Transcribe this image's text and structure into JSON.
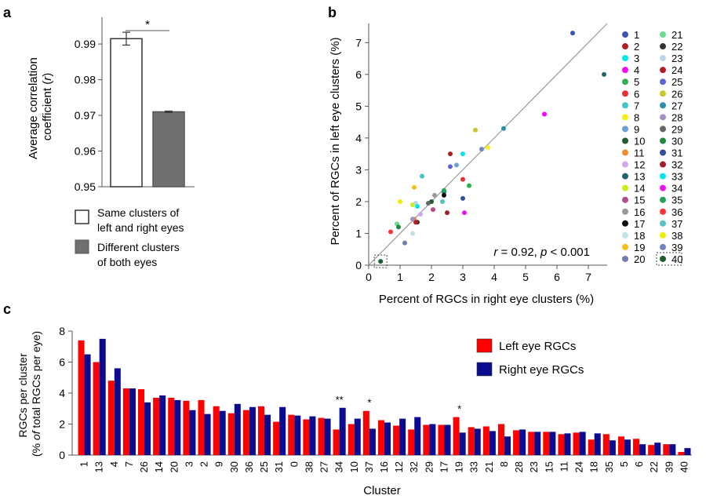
{
  "panels": [
    {
      "letter": "a",
      "type": "bar",
      "ylabel_line1": "Average correlation",
      "ylabel_line2_pre": "coefficient (",
      "ylabel_line2_var": "r",
      "ylabel_line2_post": ")",
      "ylim": [
        0.95,
        0.9975
      ],
      "yticks": [
        "0.95",
        "0.96",
        "0.97",
        "0.98",
        "0.99"
      ],
      "significance": "*",
      "bars": [
        {
          "legend_line1": "Same clusters of",
          "legend_line2": "left and right eyes",
          "value": 0.9915,
          "error": 0.0018,
          "fill": "#ffffff",
          "edge": "#333333"
        },
        {
          "legend_line1": "Different clusters",
          "legend_line2": "of both eyes",
          "value": 0.971,
          "error": 0.0002,
          "fill": "#707070",
          "edge": "#555555"
        }
      ]
    },
    {
      "letter": "b",
      "type": "scatter",
      "xlabel": "Percent of RGCs in right eye clusters (%)",
      "ylabel": "Percent of RGCs in left eye clusters (%)",
      "xlim": [
        0,
        7.6
      ],
      "ylim": [
        0,
        7.6
      ],
      "xticks": [
        "0",
        "1",
        "2",
        "3",
        "4",
        "5",
        "6",
        "7"
      ],
      "yticks": [
        "0",
        "1",
        "2",
        "3",
        "4",
        "5",
        "6",
        "7"
      ],
      "annotation": {
        "r_var": "r",
        "r_text": " = 0.92, ",
        "p_var": "p",
        "p_text": " < 0.001"
      },
      "identity_line": true,
      "highlighted_cluster": "40"
    },
    {
      "letter": "c",
      "type": "bar",
      "xlabel": "Cluster",
      "ylabel_line1": "RGCs per cluster",
      "ylabel_line2_pre": "(% ",
      "ylabel_line2_var": "of",
      "ylabel_line2_post": " total RGCs per eye)",
      "ylim": [
        0,
        8
      ],
      "yticks": [
        "0",
        "2",
        "4",
        "6",
        "8"
      ],
      "series": [
        {
          "name": "Left eye RGCs",
          "color": "#ff0000"
        },
        {
          "name": "Right eye RGCs",
          "color": "#0b0b8f"
        }
      ]
    }
  ],
  "chart_data": [
    {
      "type": "bar",
      "categories": [
        "Same clusters of left and right eyes",
        "Different clusters of both eyes"
      ],
      "values": [
        0.9915,
        0.971
      ],
      "errors": [
        0.0018,
        0.0002
      ],
      "ylim": [
        0.95,
        0.9975
      ],
      "significance": "*"
    },
    {
      "type": "scatter",
      "xlim": [
        0,
        7.6
      ],
      "ylim": [
        0,
        7.6
      ],
      "points": [
        {
          "cluster": "1",
          "color": "#3a55b4",
          "x": 6.5,
          "y": 7.3
        },
        {
          "cluster": "2",
          "color": "#b41e23",
          "x": 2.6,
          "y": 3.5
        },
        {
          "cluster": "3",
          "color": "#00e6ee",
          "x": 3.0,
          "y": 3.5
        },
        {
          "cluster": "4",
          "color": "#ff00ff",
          "x": 5.6,
          "y": 4.75
        },
        {
          "cluster": "5",
          "color": "#2ab34a",
          "x": 3.2,
          "y": 2.5
        },
        {
          "cluster": "6",
          "color": "#ee2d2d",
          "x": 3.0,
          "y": 2.7
        },
        {
          "cluster": "7",
          "color": "#40c4c6",
          "x": 1.7,
          "y": 2.8
        },
        {
          "cluster": "8",
          "color": "#f3ee14",
          "x": 3.8,
          "y": 3.7
        },
        {
          "cluster": "9",
          "color": "#6f9fd8",
          "x": 2.8,
          "y": 3.15
        },
        {
          "cluster": "10",
          "color": "#1d5d2e",
          "x": 2.0,
          "y": 2.0
        },
        {
          "cluster": "11",
          "color": "#f58a2a",
          "x": 1.45,
          "y": 1.45
        },
        {
          "cluster": "12",
          "color": "#cfa8ee",
          "x": 1.65,
          "y": 1.6
        },
        {
          "cluster": "13",
          "color": "#1d6670",
          "x": 2.4,
          "y": 2.3
        },
        {
          "cluster": "14",
          "color": "#d0ea10",
          "x": 1.4,
          "y": 1.9
        },
        {
          "cluster": "15",
          "color": "#b44a8a",
          "x": 2.05,
          "y": 1.75
        },
        {
          "cluster": "16",
          "color": "#999999",
          "x": 2.1,
          "y": 2.2
        },
        {
          "cluster": "17",
          "color": "#111111",
          "x": 2.4,
          "y": 2.2
        },
        {
          "cluster": "18",
          "color": "#bde3e6",
          "x": 1.4,
          "y": 1.0
        },
        {
          "cluster": "19",
          "color": "#f7c114",
          "x": 1.45,
          "y": 2.45
        },
        {
          "cluster": "20",
          "color": "#6f7db0",
          "x": 1.15,
          "y": 0.7
        },
        {
          "cluster": "21",
          "color": "#6fd98c",
          "x": 0.9,
          "y": 1.3
        },
        {
          "cluster": "22",
          "color": "#333333",
          "x": 1.55,
          "y": 1.35
        },
        {
          "cluster": "23",
          "color": "#bcd4ea",
          "x": 1.5,
          "y": 1.95
        },
        {
          "cluster": "24",
          "color": "#b41e23",
          "x": 1.5,
          "y": 1.35
        },
        {
          "cluster": "25",
          "color": "#5f62d8",
          "x": 2.6,
          "y": 3.1
        },
        {
          "cluster": "26",
          "color": "#c9c82a",
          "x": 3.4,
          "y": 4.25
        },
        {
          "cluster": "27",
          "color": "#2a8fa8",
          "x": 4.3,
          "y": 4.3
        },
        {
          "cluster": "28",
          "color": "#a290c4",
          "x": 1.4,
          "y": 1.45
        },
        {
          "cluster": "29",
          "color": "#666666",
          "x": 1.9,
          "y": 1.95
        },
        {
          "cluster": "30",
          "color": "#1f8b3a",
          "x": 0.95,
          "y": 1.2
        },
        {
          "cluster": "31",
          "color": "#344c9e",
          "x": 3.0,
          "y": 2.1
        },
        {
          "cluster": "32",
          "color": "#a41d2a",
          "x": 2.5,
          "y": 1.65
        },
        {
          "cluster": "33",
          "color": "#00e6ee",
          "x": 1.55,
          "y": 1.85
        },
        {
          "cluster": "34",
          "color": "#ee10ee",
          "x": 3.05,
          "y": 1.65
        },
        {
          "cluster": "35",
          "color": "#22a35a",
          "x": 2.4,
          "y": 2.35
        },
        {
          "cluster": "36",
          "color": "#ff3333",
          "x": 0.7,
          "y": 1.05
        },
        {
          "cluster": "37",
          "color": "#57c2c8",
          "x": 2.35,
          "y": 2.0
        },
        {
          "cluster": "38",
          "color": "#eeee00",
          "x": 1.0,
          "y": 2.0
        },
        {
          "cluster": "39",
          "color": "#6f86c2",
          "x": 3.6,
          "y": 3.65
        },
        {
          "cluster": "40",
          "color": "#1d5d2e",
          "x": 0.38,
          "y": 0.12
        },
        {
          "cluster": "",
          "color": "#1a6a6c",
          "x": 7.5,
          "y": 6.0
        }
      ],
      "xlabel": "Percent of RGCs in right eye clusters (%)",
      "ylabel": "Percent of RGCs in left eye clusters (%)"
    },
    {
      "type": "bar",
      "categories": [
        "1",
        "13",
        "4",
        "7",
        "26",
        "14",
        "20",
        "3",
        "2",
        "9",
        "30",
        "36",
        "25",
        "31",
        "0",
        "38",
        "27",
        "34",
        "10",
        "37",
        "16",
        "12",
        "32",
        "29",
        "17",
        "19",
        "33",
        "21",
        "8",
        "28",
        "23",
        "15",
        "11",
        "24",
        "18",
        "35",
        "5",
        "6",
        "22",
        "39",
        "40"
      ],
      "series": [
        {
          "name": "Left eye RGCs",
          "values": [
            7.4,
            6.0,
            4.8,
            4.3,
            4.25,
            3.7,
            3.7,
            3.5,
            3.55,
            3.15,
            2.7,
            2.9,
            3.15,
            2.15,
            2.6,
            2.3,
            2.4,
            1.65,
            2.0,
            2.85,
            2.25,
            1.9,
            1.65,
            1.95,
            1.95,
            2.45,
            1.8,
            1.85,
            2.0,
            1.6,
            1.5,
            1.5,
            1.35,
            1.45,
            1.0,
            1.35,
            1.2,
            1.05,
            0.65,
            0.7,
            0.2
          ]
        },
        {
          "name": "Right eye RGCs",
          "values": [
            6.5,
            7.5,
            5.6,
            4.3,
            3.4,
            3.85,
            3.55,
            2.9,
            2.65,
            2.85,
            3.3,
            3.1,
            2.6,
            3.1,
            2.55,
            2.5,
            2.35,
            3.05,
            2.35,
            1.7,
            2.1,
            2.35,
            2.45,
            2.0,
            1.95,
            1.45,
            1.7,
            1.55,
            1.2,
            1.65,
            1.5,
            1.5,
            1.4,
            1.5,
            1.4,
            0.95,
            1.0,
            0.7,
            0.8,
            0.7,
            0.45
          ]
        }
      ],
      "annotations": [
        {
          "category": "34",
          "text": "**"
        },
        {
          "category": "37",
          "text": "*"
        },
        {
          "category": "19",
          "text": "*"
        }
      ],
      "xlabel": "Cluster",
      "ylim": [
        0,
        8
      ]
    }
  ]
}
